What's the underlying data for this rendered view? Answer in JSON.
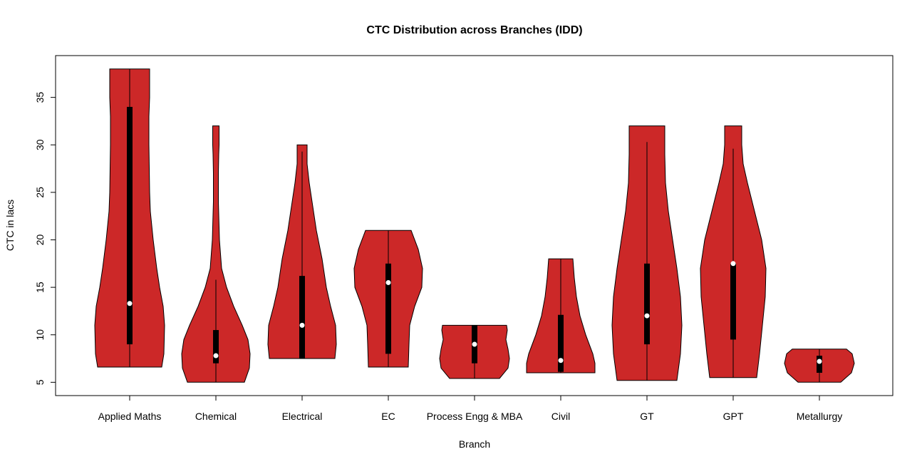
{
  "chart_data": {
    "type": "violin",
    "title": "CTC Distribution across Branches (IDD)",
    "xlabel": "Branch",
    "ylabel": "CTC in lacs",
    "ylim": [
      3.6,
      39.4
    ],
    "yticks": [
      5,
      10,
      15,
      20,
      25,
      30,
      35
    ],
    "grid": false,
    "fill_color": "#cc2828",
    "box_color": "#000000",
    "median_color": "#ffffff",
    "categories": [
      "Applied Maths",
      "Chemical",
      "Electrical",
      "EC",
      "Process Engg & MBA",
      "Civil",
      "GT",
      "GPT",
      "Metallurgy"
    ],
    "series": [
      {
        "category": "Applied Maths",
        "min": 6.6,
        "q1": 9,
        "median": 13.3,
        "q3": 34,
        "max": 38,
        "whisker_low": 6.6,
        "whisker_high": 38,
        "density": [
          [
            6.6,
            0.9
          ],
          [
            8,
            0.96
          ],
          [
            11,
            0.98
          ],
          [
            13,
            0.94
          ],
          [
            15,
            0.84
          ],
          [
            17,
            0.76
          ],
          [
            20,
            0.66
          ],
          [
            23,
            0.58
          ],
          [
            25,
            0.56
          ],
          [
            30,
            0.54
          ],
          [
            33,
            0.54
          ],
          [
            35,
            0.56
          ],
          [
            38,
            0.56
          ]
        ]
      },
      {
        "category": "Chemical",
        "min": 5,
        "q1": 7,
        "median": 7.8,
        "q3": 10.5,
        "max": 32,
        "whisker_low": 5,
        "whisker_high": 15.8,
        "density": [
          [
            5,
            0.8
          ],
          [
            6.5,
            0.94
          ],
          [
            8,
            0.96
          ],
          [
            9.5,
            0.9
          ],
          [
            11,
            0.74
          ],
          [
            13,
            0.5
          ],
          [
            15,
            0.3
          ],
          [
            17,
            0.16
          ],
          [
            20,
            0.1
          ],
          [
            24,
            0.07
          ],
          [
            27,
            0.07
          ],
          [
            29,
            0.08
          ],
          [
            30,
            0.09
          ],
          [
            32,
            0.09
          ]
        ]
      },
      {
        "category": "Electrical",
        "min": 7.5,
        "q1": 7.5,
        "median": 11,
        "q3": 16.2,
        "max": 30,
        "whisker_low": 7.5,
        "whisker_high": 29.3,
        "density": [
          [
            7.5,
            0.92
          ],
          [
            9,
            0.96
          ],
          [
            11,
            0.94
          ],
          [
            13,
            0.8
          ],
          [
            15,
            0.68
          ],
          [
            18,
            0.56
          ],
          [
            21,
            0.4
          ],
          [
            24,
            0.28
          ],
          [
            26,
            0.2
          ],
          [
            28,
            0.14
          ],
          [
            30,
            0.14
          ]
        ]
      },
      {
        "category": "EC",
        "min": 6.6,
        "q1": 8,
        "median": 15.5,
        "q3": 17.5,
        "max": 21,
        "whisker_low": 6.6,
        "whisker_high": 21,
        "density": [
          [
            6.6,
            0.56
          ],
          [
            9,
            0.58
          ],
          [
            11,
            0.6
          ],
          [
            13,
            0.74
          ],
          [
            15,
            0.94
          ],
          [
            17,
            0.96
          ],
          [
            19,
            0.84
          ],
          [
            21,
            0.64
          ]
        ]
      },
      {
        "category": "Process Engg & MBA",
        "min": 5.4,
        "q1": 7,
        "median": 9,
        "q3": 11,
        "max": 11,
        "whisker_low": 5.4,
        "whisker_high": 11,
        "density": [
          [
            5.4,
            0.7
          ],
          [
            6.5,
            0.94
          ],
          [
            7.5,
            0.98
          ],
          [
            8.5,
            0.94
          ],
          [
            9.5,
            0.88
          ],
          [
            10.5,
            0.92
          ],
          [
            11,
            0.9
          ]
        ]
      },
      {
        "category": "Civil",
        "min": 6,
        "q1": 6.1,
        "median": 7.3,
        "q3": 12.1,
        "max": 18,
        "whisker_low": 6,
        "whisker_high": 18,
        "density": [
          [
            6,
            0.96
          ],
          [
            7,
            0.96
          ],
          [
            8,
            0.9
          ],
          [
            10,
            0.7
          ],
          [
            12,
            0.54
          ],
          [
            14,
            0.44
          ],
          [
            16,
            0.38
          ],
          [
            18,
            0.34
          ]
        ]
      },
      {
        "category": "GT",
        "min": 5.2,
        "q1": 9,
        "median": 12,
        "q3": 17.5,
        "max": 32,
        "whisker_low": 5.2,
        "whisker_high": 30.3,
        "density": [
          [
            5.2,
            0.84
          ],
          [
            8,
            0.94
          ],
          [
            11,
            0.98
          ],
          [
            14,
            0.94
          ],
          [
            17,
            0.84
          ],
          [
            20,
            0.72
          ],
          [
            23,
            0.6
          ],
          [
            26,
            0.52
          ],
          [
            29,
            0.5
          ],
          [
            32,
            0.5
          ]
        ]
      },
      {
        "category": "GPT",
        "min": 5.5,
        "q1": 9.5,
        "median": 17.5,
        "q3": 17.5,
        "max": 32,
        "whisker_low": 5.5,
        "whisker_high": 29.6,
        "density": [
          [
            5.5,
            0.66
          ],
          [
            8,
            0.74
          ],
          [
            11,
            0.82
          ],
          [
            14,
            0.9
          ],
          [
            17,
            0.92
          ],
          [
            20,
            0.8
          ],
          [
            23,
            0.6
          ],
          [
            26,
            0.4
          ],
          [
            28,
            0.28
          ],
          [
            30,
            0.24
          ],
          [
            32,
            0.24
          ]
        ]
      },
      {
        "category": "Metallurgy",
        "min": 5,
        "q1": 6,
        "median": 7.2,
        "q3": 7.8,
        "max": 8.5,
        "whisker_low": 5,
        "whisker_high": 8.5,
        "density": [
          [
            5,
            0.6
          ],
          [
            6,
            0.9
          ],
          [
            7,
            0.98
          ],
          [
            8,
            0.92
          ],
          [
            8.5,
            0.76
          ]
        ]
      }
    ]
  }
}
